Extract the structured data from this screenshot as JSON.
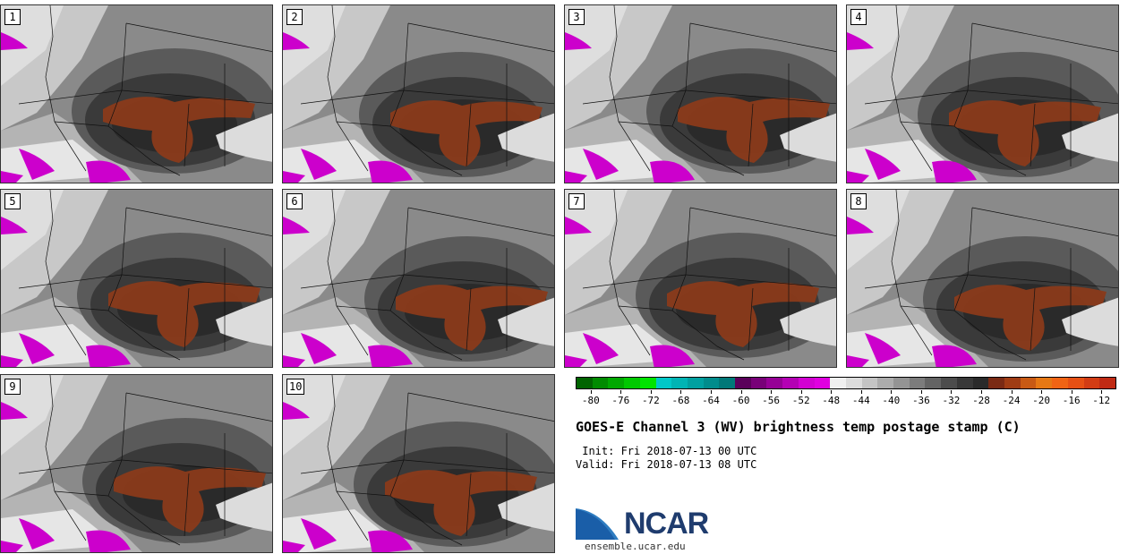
{
  "panels": [
    {
      "label": "1"
    },
    {
      "label": "2"
    },
    {
      "label": "3"
    },
    {
      "label": "4"
    },
    {
      "label": "5"
    },
    {
      "label": "6"
    },
    {
      "label": "7"
    },
    {
      "label": "8"
    },
    {
      "label": "9"
    },
    {
      "label": "10"
    }
  ],
  "colorbar": {
    "colors": [
      "#006400",
      "#008b00",
      "#00a800",
      "#00c800",
      "#00e400",
      "#00c8c8",
      "#00b4b4",
      "#00a0a0",
      "#008c8c",
      "#007878",
      "#5a005a",
      "#780078",
      "#960096",
      "#b400b4",
      "#d200d2",
      "#e000e0",
      "#f0f0f0",
      "#dcdcdc",
      "#c4c4c4",
      "#acacac",
      "#949494",
      "#7c7c7c",
      "#646464",
      "#4c4c4c",
      "#383838",
      "#2a2a2a",
      "#7a2a14",
      "#a03c14",
      "#c85a14",
      "#e67814",
      "#f06414",
      "#e65014",
      "#d23c14",
      "#c02a14"
    ],
    "ticks": [
      "-80",
      "-76",
      "-72",
      "-68",
      "-64",
      "-60",
      "-56",
      "-52",
      "-48",
      "-44",
      "-40",
      "-36",
      "-32",
      "-28",
      "-24",
      "-20",
      "-16",
      "-12"
    ]
  },
  "title": "GOES-E Channel 3 (WV) brightness temp postage stamp (C)",
  "init": " Init: Fri 2018-07-13 00 UTC",
  "valid": "Valid: Fri 2018-07-13 08 UTC",
  "logo": {
    "text": "NCAR"
  },
  "site": "ensemble.ucar.edu"
}
